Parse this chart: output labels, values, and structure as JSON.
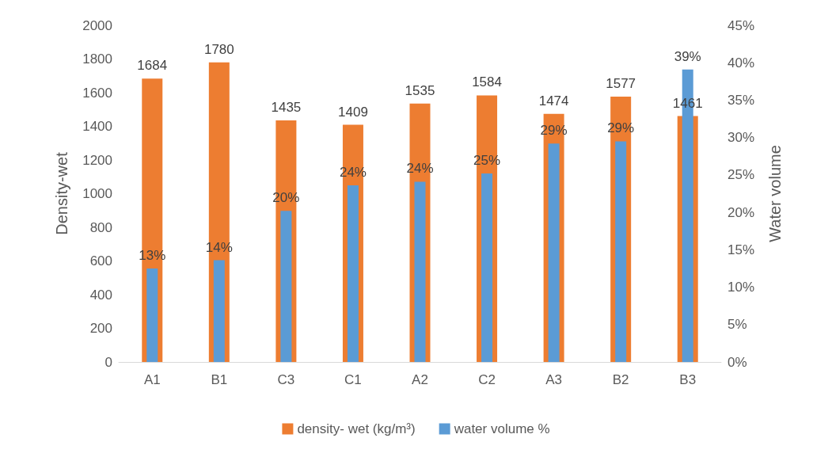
{
  "chart_data": {
    "type": "bar",
    "xlabel": null,
    "ylabel": "Density-wet",
    "y2label": "Water volume",
    "categories": [
      "A1",
      "B1",
      "C3",
      "C1",
      "A2",
      "C2",
      "A3",
      "B2",
      "B3"
    ],
    "series": [
      {
        "name": "density- wet (kg/m³)",
        "color": "#ed7d31",
        "values": [
          1684,
          1780,
          1435,
          1409,
          1535,
          1584,
          1474,
          1577,
          1461
        ],
        "value_labels": [
          "1684",
          "1780",
          "1435",
          "1409",
          "1535",
          "1584",
          "1474",
          "1577",
          "1461"
        ]
      },
      {
        "name": "water volume %",
        "color": "#5b9bd5",
        "axis": "y2",
        "values": [
          12.5,
          13.6,
          20.2,
          23.6,
          24.1,
          25.2,
          29.2,
          29.5,
          39.1
        ],
        "value_labels": [
          "13%",
          "14%",
          "20%",
          "24%",
          "24%",
          "25%",
          "29%",
          "29%",
          "39%"
        ]
      }
    ],
    "ylim": [
      0,
      2000
    ],
    "yticks": [
      0,
      200,
      400,
      600,
      800,
      1000,
      1200,
      1400,
      1600,
      1800,
      2000
    ],
    "y2lim": [
      0,
      45
    ],
    "y2ticks": [
      {
        "value": 0,
        "label": "0%"
      },
      {
        "value": 5,
        "label": "5%"
      },
      {
        "value": 10,
        "label": "10%"
      },
      {
        "value": 15,
        "label": "15%"
      },
      {
        "value": 20,
        "label": "20%"
      },
      {
        "value": 25,
        "label": "25%"
      },
      {
        "value": 30,
        "label": "30%"
      },
      {
        "value": 35,
        "label": "35%"
      },
      {
        "value": 40,
        "label": "40%"
      },
      {
        "value": 45,
        "label": "45%"
      }
    ],
    "legend": "bottom"
  }
}
